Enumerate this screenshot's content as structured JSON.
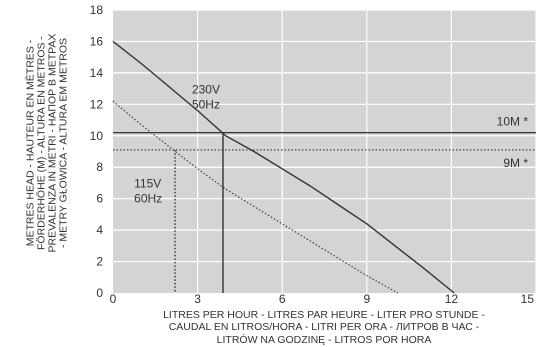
{
  "chart_data": {
    "type": "line",
    "title": "",
    "xlabel_lines": [
      "LITRES PER HOUR - LITRES PAR HEURE - LITER PRO STUNDE -",
      "CAUDAL EN LITROS/HORA - LITRI PER ORA - ЛИТРОВ В ЧАС -",
      "LITRÓW NA GODZINĘ - LITROS POR HORA"
    ],
    "ylabel_lines": [
      "METRES HEAD - HAUTEUR EN MÈTRES -",
      "FÖRDERHÖHE (M) - ALTURA EN METROS -",
      "PREVALENZA IN METRI - НАПОР В МЕТРАХ",
      "- METRY GŁOWICA - ALTURA EM METROS"
    ],
    "xlim": [
      0,
      15
    ],
    "ylim": [
      0,
      18
    ],
    "x_ticks": [
      0,
      3,
      6,
      9,
      12,
      15
    ],
    "y_ticks": [
      0,
      2,
      4,
      6,
      8,
      10,
      12,
      14,
      16,
      18
    ],
    "grid": true,
    "series": [
      {
        "name": "230V 50Hz",
        "label_lines": [
          "230V",
          "50Hz"
        ],
        "style": "solid",
        "x": [
          0,
          1,
          2,
          3,
          4,
          5,
          6,
          7,
          8,
          9,
          10,
          11,
          12.1
        ],
        "y": [
          16,
          14.6,
          13.1,
          11.6,
          10.0,
          9.0,
          7.9,
          6.8,
          5.6,
          4.4,
          3.0,
          1.6,
          0
        ]
      },
      {
        "name": "115V 60Hz",
        "label_lines": [
          "115V",
          "60Hz"
        ],
        "style": "dotted",
        "x": [
          0,
          1,
          2,
          3,
          4,
          5,
          6,
          7,
          8,
          9,
          10.1
        ],
        "y": [
          12.2,
          10.7,
          9.3,
          7.9,
          6.6,
          5.5,
          4.4,
          3.3,
          2.2,
          1.1,
          0
        ]
      }
    ],
    "reference_lines": [
      {
        "label": "10M *",
        "y": 10.2,
        "style": "solid",
        "intersect_x": 3.9
      },
      {
        "label": "9M *",
        "y": 9.1,
        "style": "dotted",
        "intersect_x": 2.2
      }
    ],
    "colors": {
      "background": "#d4d4d4",
      "grid": "#ffffff",
      "line": "#333333",
      "text": "#333333"
    }
  }
}
